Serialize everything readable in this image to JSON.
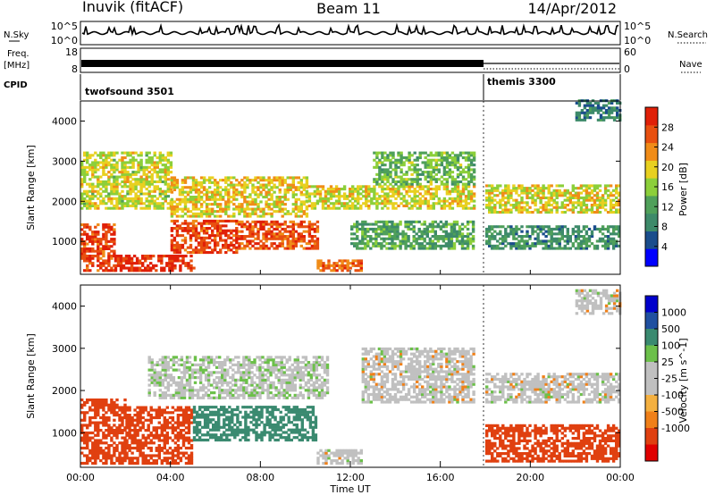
{
  "header": {
    "station": "Inuvik (fitACF)",
    "beam": "Beam 11",
    "date": "14/Apr/2012"
  },
  "panels": {
    "nsky": {
      "label": "N.Sky",
      "ticks": [
        "10^5",
        "10^0"
      ],
      "right_label": "N.Search",
      "right_ticks": [
        "10^5",
        "10^0"
      ]
    },
    "freq": {
      "label_top": "Freq.",
      "label_bottom": "[MHz]",
      "ticks": [
        "18",
        "8"
      ],
      "right_label": "Nave",
      "right_ticks": [
        "60",
        "0"
      ]
    },
    "cpid": {
      "label": "CPID",
      "modes": [
        {
          "name": "twofsound 3501",
          "start_hour": 0
        },
        {
          "name": "themis 3300",
          "start_hour": 18
        }
      ]
    }
  },
  "colors": {
    "power": [
      "#0000ff",
      "#1a4d8c",
      "#3d8a6a",
      "#4fa05a",
      "#8ccf3a",
      "#e8d020",
      "#f08c18",
      "#e85010",
      "#e02008"
    ],
    "velocity": [
      "#e00000",
      "#e04010",
      "#f08018",
      "#f4b040",
      "#c8c8c8",
      "#c8c8c8",
      "#6cc04a",
      "#3a8a70",
      "#2050a0",
      "#0000cc"
    ],
    "ground_scatter": "#c0c0c0"
  },
  "chart_data": [
    {
      "type": "heatmap",
      "name": "Power",
      "x_unit": "hours",
      "ylabel": "Slant Range [km]",
      "ylim": [
        180,
        4500
      ],
      "y_ticks": [
        1000,
        2000,
        3000,
        4000
      ],
      "colorbar": {
        "label": "Power [dB]",
        "range": [
          0,
          32
        ],
        "ticks": [
          4,
          8,
          12,
          16,
          20,
          24,
          28
        ]
      },
      "regions": [
        {
          "t0": 0.0,
          "t1": 1.5,
          "r0": 250,
          "r1": 1400,
          "v": 28
        },
        {
          "t0": 1.5,
          "t1": 5.0,
          "r0": 250,
          "r1": 650,
          "v": 30
        },
        {
          "t0": 4.0,
          "t1": 7.0,
          "r0": 700,
          "r1": 1500,
          "v": 28
        },
        {
          "t0": 7.0,
          "t1": 10.5,
          "r0": 800,
          "r1": 1500,
          "v": 27
        },
        {
          "t0": 10.5,
          "t1": 12.5,
          "r0": 250,
          "r1": 500,
          "v": 26
        },
        {
          "t0": 0.0,
          "t1": 4.0,
          "r0": 1800,
          "r1": 3200,
          "v": 18
        },
        {
          "t0": 4.0,
          "t1": 10.0,
          "r0": 1600,
          "r1": 2600,
          "v": 20
        },
        {
          "t0": 10.0,
          "t1": 17.5,
          "r0": 1800,
          "r1": 2400,
          "v": 19
        },
        {
          "t0": 12.0,
          "t1": 17.5,
          "r0": 800,
          "r1": 1500,
          "v": 12
        },
        {
          "t0": 13.0,
          "t1": 17.5,
          "r0": 2400,
          "r1": 3200,
          "v": 14
        },
        {
          "t0": 18.0,
          "t1": 24.0,
          "r0": 1700,
          "r1": 2400,
          "v": 19
        },
        {
          "t0": 18.0,
          "t1": 24.0,
          "r0": 800,
          "r1": 1400,
          "v": 10
        },
        {
          "t0": 22.0,
          "t1": 24.0,
          "r0": 4000,
          "r1": 4500,
          "v": 8
        }
      ]
    },
    {
      "type": "heatmap",
      "name": "Velocity",
      "x_unit": "hours",
      "xlabel": "Time UT",
      "x_ticks": [
        "00:00",
        "04:00",
        "08:00",
        "12:00",
        "16:00",
        "20:00",
        "00:00"
      ],
      "ylabel": "Slant Range [km]",
      "ylim": [
        180,
        4500
      ],
      "y_ticks": [
        1000,
        2000,
        3000,
        4000
      ],
      "colorbar": {
        "label": "Velocity [m s^-1]",
        "ticks": [
          1000,
          500,
          100,
          25,
          -25,
          -100,
          -500,
          -1000
        ]
      },
      "regions": [
        {
          "t0": 0.0,
          "t1": 2.0,
          "r0": 250,
          "r1": 1800,
          "v": -200
        },
        {
          "t0": 2.0,
          "t1": 5.0,
          "r0": 250,
          "r1": 1600,
          "v": -150
        },
        {
          "t0": 5.0,
          "t1": 10.5,
          "r0": 800,
          "r1": 1600,
          "v": 300
        },
        {
          "t0": 10.5,
          "t1": 12.5,
          "r0": 250,
          "r1": 600,
          "v": 0
        },
        {
          "t0": 12.5,
          "t1": 17.5,
          "r0": 1700,
          "r1": 3000,
          "v": 0
        },
        {
          "t0": 3.0,
          "t1": 11.0,
          "r0": 1800,
          "r1": 2800,
          "v": 10
        },
        {
          "t0": 18.0,
          "t1": 24.0,
          "r0": 1700,
          "r1": 2400,
          "v": 0
        },
        {
          "t0": 18.0,
          "t1": 24.0,
          "r0": 300,
          "r1": 1200,
          "v": -300
        },
        {
          "t0": 22.0,
          "t1": 24.0,
          "r0": 3800,
          "r1": 4400,
          "v": 0
        }
      ]
    }
  ]
}
